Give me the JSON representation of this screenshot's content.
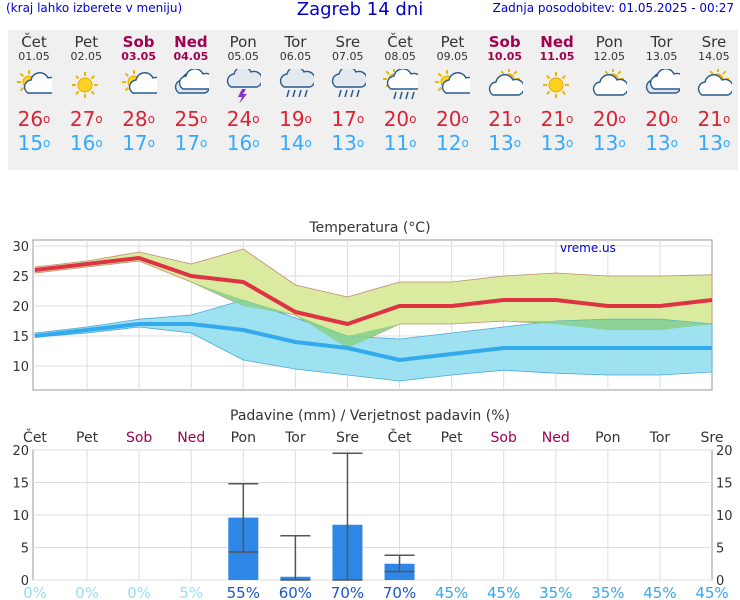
{
  "header": {
    "note": "(kraj lahko izberete v meniju)",
    "title": "Zagreb 14 dni",
    "updated": "Zadnja posodobitev: 01.05.2025 - 00:27"
  },
  "days": [
    {
      "name": "Čet",
      "date": "01.05",
      "weekend": false,
      "icon": "sun-cloud-icon",
      "tmax": "26",
      "tmin": "15"
    },
    {
      "name": "Pet",
      "date": "02.05",
      "weekend": false,
      "icon": "sun-icon",
      "tmax": "27",
      "tmin": "16"
    },
    {
      "name": "Sob",
      "date": "03.05",
      "weekend": true,
      "icon": "sun-cloud-icon",
      "tmax": "28",
      "tmin": "17"
    },
    {
      "name": "Ned",
      "date": "04.05",
      "weekend": true,
      "icon": "cloud-icon",
      "tmax": "25",
      "tmin": "17"
    },
    {
      "name": "Pon",
      "date": "05.05",
      "weekend": false,
      "icon": "thunderstorm-icon",
      "tmax": "24",
      "tmin": "16"
    },
    {
      "name": "Tor",
      "date": "06.05",
      "weekend": false,
      "icon": "rain-cloud-icon",
      "tmax": "19",
      "tmin": "14"
    },
    {
      "name": "Sre",
      "date": "07.05",
      "weekend": false,
      "icon": "rain-cloud-icon",
      "tmax": "17",
      "tmin": "13"
    },
    {
      "name": "Čet",
      "date": "08.05",
      "weekend": false,
      "icon": "sun-rain-icon",
      "tmax": "20",
      "tmin": "11"
    },
    {
      "name": "Pet",
      "date": "09.05",
      "weekend": false,
      "icon": "sun-cloud-icon",
      "tmax": "20",
      "tmin": "12"
    },
    {
      "name": "Sob",
      "date": "10.05",
      "weekend": true,
      "icon": "partly-cloudy-icon",
      "tmax": "21",
      "tmin": "13"
    },
    {
      "name": "Ned",
      "date": "11.05",
      "weekend": true,
      "icon": "sun-icon",
      "tmax": "21",
      "tmin": "13"
    },
    {
      "name": "Pon",
      "date": "12.05",
      "weekend": false,
      "icon": "partly-cloudy-icon",
      "tmax": "20",
      "tmin": "13"
    },
    {
      "name": "Tor",
      "date": "13.05",
      "weekend": false,
      "icon": "cloud-icon",
      "tmax": "20",
      "tmin": "13"
    },
    {
      "name": "Sre",
      "date": "14.05",
      "weekend": false,
      "icon": "partly-cloudy-icon",
      "tmax": "21",
      "tmin": "13"
    }
  ],
  "colors": {
    "max": "#dd3344",
    "min": "#33aaee",
    "maxBand": "#d8ea9a",
    "minBand": "#99dff0",
    "overlap": "#88d088",
    "bar": "#2e86e6",
    "weekend": "#a0004f"
  },
  "chart_data": [
    {
      "type": "line",
      "title": "Temperatura (°C)",
      "watermark": "vreme.us",
      "ylim": [
        6,
        31
      ],
      "yticks": [
        10,
        15,
        20,
        25,
        30
      ],
      "x": [
        0,
        1,
        2,
        3,
        4,
        5,
        6,
        7,
        8,
        9,
        10,
        11,
        12,
        13
      ],
      "series": [
        {
          "name": "max",
          "values": [
            26,
            27,
            28,
            25,
            24,
            19,
            17,
            20,
            20,
            21,
            21,
            20,
            20,
            21
          ]
        },
        {
          "name": "min",
          "values": [
            15,
            16,
            17,
            17,
            16,
            14,
            13,
            11,
            12,
            13,
            13,
            13,
            13,
            13
          ]
        },
        {
          "name": "max_high",
          "values": [
            26.5,
            27.5,
            29,
            27,
            29.5,
            23.5,
            21.5,
            24,
            24,
            25,
            25.5,
            25,
            25,
            25.2
          ]
        },
        {
          "name": "max_low",
          "values": [
            25.5,
            26.5,
            27.5,
            24,
            20,
            18.5,
            13,
            17,
            17,
            17.5,
            17,
            16,
            16,
            17
          ]
        },
        {
          "name": "min_high",
          "values": [
            15.5,
            16.5,
            17.8,
            18.5,
            21,
            18,
            15,
            14.5,
            15.5,
            16.5,
            17.5,
            17.8,
            17.8,
            17
          ]
        },
        {
          "name": "min_low",
          "values": [
            14.8,
            15.5,
            16.5,
            15.5,
            11,
            9.5,
            8.5,
            7.5,
            8.5,
            9.3,
            8.8,
            8.5,
            8.5,
            9
          ]
        }
      ]
    },
    {
      "type": "bar",
      "title": "Padavine (mm) / Verjetnost padavin (%)",
      "ylim": [
        0,
        20
      ],
      "yticks": [
        0,
        5,
        10,
        15,
        20
      ],
      "categories": [
        "Čet",
        "Pet",
        "Sob",
        "Ned",
        "Pon",
        "Tor",
        "Sre",
        "Čet",
        "Pet",
        "Sob",
        "Ned",
        "Pon",
        "Tor",
        "Sre"
      ],
      "weekend": [
        false,
        false,
        true,
        true,
        false,
        false,
        false,
        false,
        false,
        true,
        true,
        false,
        false,
        false
      ],
      "values": [
        0,
        0,
        0,
        0,
        9.6,
        0.5,
        8.5,
        2.5,
        0,
        0,
        0,
        0,
        0,
        0
      ],
      "low": [
        null,
        null,
        null,
        null,
        4.3,
        0,
        0,
        1.3,
        null,
        null,
        null,
        null,
        null,
        null
      ],
      "high": [
        null,
        null,
        null,
        null,
        14.8,
        6.8,
        19.5,
        3.8,
        null,
        null,
        null,
        null,
        null,
        null
      ],
      "probability": [
        "0%",
        "0%",
        "0%",
        "5%",
        "55%",
        "60%",
        "70%",
        "70%",
        "45%",
        "45%",
        "35%",
        "35%",
        "45%",
        "45%"
      ]
    }
  ]
}
